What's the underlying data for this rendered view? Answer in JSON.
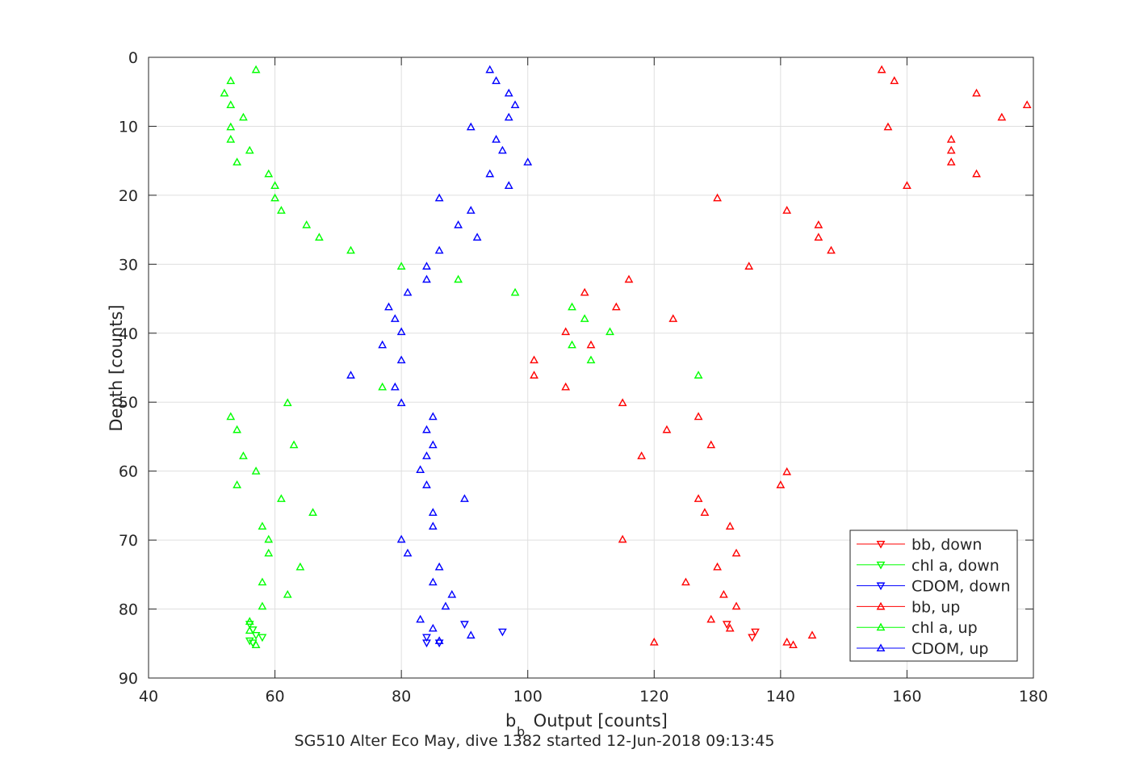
{
  "chart_data": {
    "type": "scatter",
    "title": "",
    "xlabel_main": "b",
    "xlabel_sub": "b",
    "xlabel_rest": " Output [counts]",
    "ylabel": "Depth [counts]",
    "caption": "SG510 Alter Eco May, dive 1382 started 12-Jun-2018 09:13:45",
    "xlim": [
      40,
      180
    ],
    "ylim": [
      0,
      90
    ],
    "y_reversed": true,
    "grid": true,
    "legend_position": "bottom-right",
    "x_ticks": [
      40,
      60,
      80,
      100,
      120,
      140,
      160,
      180
    ],
    "y_ticks": [
      0,
      10,
      20,
      30,
      40,
      50,
      60,
      70,
      80,
      90
    ],
    "series": [
      {
        "name": "bb, down",
        "color": "#ff0000",
        "marker": "triangle-down",
        "points": [
          [
            131.5,
            82.2
          ],
          [
            135.5,
            84.1
          ],
          [
            136,
            83.3
          ]
        ]
      },
      {
        "name": "chl a, down",
        "color": "#00ff00",
        "marker": "triangle-down",
        "points": [
          [
            56,
            82.2
          ],
          [
            56.5,
            83.0
          ],
          [
            57,
            83.8
          ],
          [
            58,
            84.1
          ],
          [
            56,
            84.6
          ],
          [
            56.5,
            84.9
          ]
        ]
      },
      {
        "name": "CDOM, down",
        "color": "#0000ff",
        "marker": "triangle-down",
        "points": [
          [
            90,
            82.2
          ],
          [
            96,
            83.3
          ],
          [
            84,
            84.1
          ],
          [
            84,
            84.9
          ],
          [
            86,
            84.9
          ]
        ]
      },
      {
        "name": "bb, up",
        "color": "#ff0000",
        "marker": "triangle-up",
        "points": [
          [
            156,
            1.8
          ],
          [
            158,
            3.4
          ],
          [
            171,
            5.2
          ],
          [
            179,
            6.9
          ],
          [
            175,
            8.7
          ],
          [
            157,
            10.1
          ],
          [
            167,
            11.9
          ],
          [
            167,
            13.5
          ],
          [
            167,
            15.2
          ],
          [
            171,
            16.9
          ],
          [
            160,
            18.6
          ],
          [
            130,
            20.4
          ],
          [
            141,
            22.2
          ],
          [
            146,
            24.3
          ],
          [
            146,
            26.1
          ],
          [
            148,
            28.0
          ],
          [
            135,
            30.3
          ],
          [
            116,
            32.2
          ],
          [
            109,
            34.1
          ],
          [
            114,
            36.2
          ],
          [
            123,
            37.9
          ],
          [
            106,
            39.8
          ],
          [
            110,
            41.7
          ],
          [
            101,
            43.9
          ],
          [
            101,
            46.1
          ],
          [
            106,
            47.8
          ],
          [
            115,
            50.1
          ],
          [
            127,
            52.1
          ],
          [
            122,
            54.0
          ],
          [
            129,
            56.2
          ],
          [
            118,
            57.8
          ],
          [
            141,
            60.1
          ],
          [
            140,
            62.0
          ],
          [
            127,
            64.0
          ],
          [
            128,
            66.0
          ],
          [
            132,
            68.0
          ],
          [
            115,
            69.9
          ],
          [
            133,
            71.9
          ],
          [
            130,
            73.9
          ],
          [
            125,
            76.1
          ],
          [
            131,
            77.9
          ],
          [
            133,
            79.6
          ],
          [
            129,
            81.5
          ],
          [
            132,
            82.8
          ],
          [
            145,
            83.8
          ],
          [
            141,
            84.8
          ],
          [
            142,
            85.2
          ],
          [
            120,
            84.8
          ]
        ]
      },
      {
        "name": "chl a, up",
        "color": "#00ff00",
        "marker": "triangle-up",
        "points": [
          [
            57,
            1.8
          ],
          [
            53,
            3.4
          ],
          [
            52,
            5.2
          ],
          [
            53,
            6.9
          ],
          [
            55,
            8.7
          ],
          [
            53,
            10.1
          ],
          [
            53,
            11.9
          ],
          [
            56,
            13.5
          ],
          [
            54,
            15.2
          ],
          [
            59,
            16.9
          ],
          [
            60,
            18.6
          ],
          [
            60,
            20.4
          ],
          [
            61,
            22.2
          ],
          [
            65,
            24.3
          ],
          [
            67,
            26.1
          ],
          [
            72,
            28.0
          ],
          [
            80,
            30.3
          ],
          [
            89,
            32.2
          ],
          [
            98,
            34.1
          ],
          [
            107,
            36.2
          ],
          [
            109,
            37.9
          ],
          [
            113,
            39.8
          ],
          [
            107,
            41.7
          ],
          [
            110,
            43.9
          ],
          [
            127,
            46.1
          ],
          [
            77,
            47.8
          ],
          [
            62,
            50.1
          ],
          [
            53,
            52.1
          ],
          [
            54,
            54.0
          ],
          [
            63,
            56.2
          ],
          [
            55,
            57.8
          ],
          [
            57,
            60.0
          ],
          [
            54,
            62.0
          ],
          [
            61,
            64.0
          ],
          [
            66,
            66.0
          ],
          [
            58,
            68.0
          ],
          [
            59,
            69.9
          ],
          [
            59,
            71.9
          ],
          [
            64,
            73.9
          ],
          [
            58,
            76.1
          ],
          [
            62,
            77.9
          ],
          [
            58,
            79.6
          ],
          [
            56,
            81.8
          ],
          [
            56,
            83.1
          ],
          [
            57,
            85.2
          ]
        ]
      },
      {
        "name": "CDOM, up",
        "color": "#0000ff",
        "marker": "triangle-up",
        "points": [
          [
            94,
            1.8
          ],
          [
            95,
            3.4
          ],
          [
            97,
            5.2
          ],
          [
            98,
            6.9
          ],
          [
            97,
            8.7
          ],
          [
            91,
            10.1
          ],
          [
            95,
            11.9
          ],
          [
            96,
            13.5
          ],
          [
            100,
            15.2
          ],
          [
            94,
            16.9
          ],
          [
            97,
            18.6
          ],
          [
            86,
            20.4
          ],
          [
            91,
            22.2
          ],
          [
            89,
            24.3
          ],
          [
            92,
            26.1
          ],
          [
            86,
            28.0
          ],
          [
            84,
            30.3
          ],
          [
            84,
            32.2
          ],
          [
            81,
            34.1
          ],
          [
            78,
            36.2
          ],
          [
            79,
            37.9
          ],
          [
            80,
            39.8
          ],
          [
            77,
            41.7
          ],
          [
            80,
            43.9
          ],
          [
            72,
            46.1
          ],
          [
            79,
            47.8
          ],
          [
            80,
            50.1
          ],
          [
            85,
            52.1
          ],
          [
            84,
            54.0
          ],
          [
            85,
            56.2
          ],
          [
            84,
            57.8
          ],
          [
            83,
            59.8
          ],
          [
            84,
            62.0
          ],
          [
            90,
            64.0
          ],
          [
            85,
            66.0
          ],
          [
            85,
            68.0
          ],
          [
            80,
            69.9
          ],
          [
            81,
            71.9
          ],
          [
            86,
            73.9
          ],
          [
            85,
            76.1
          ],
          [
            88,
            77.9
          ],
          [
            87,
            79.6
          ],
          [
            83,
            81.5
          ],
          [
            85,
            82.8
          ],
          [
            91,
            83.8
          ],
          [
            86,
            84.6
          ]
        ]
      }
    ]
  }
}
